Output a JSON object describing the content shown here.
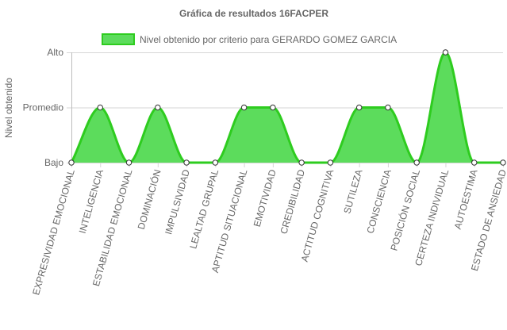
{
  "chart_data": {
    "type": "area",
    "title": "Gráfica de resultados 16FACPER",
    "ylabel": "Nivel obtenido",
    "xlabel": "",
    "y_tick_labels": [
      "Bajo",
      "Promedio",
      "Alto"
    ],
    "ylim": [
      0,
      2
    ],
    "grid": true,
    "legend": "top",
    "categories": [
      "EXPRESIVIDAD EMOCIONAL",
      "INTELIGENCIA",
      "ESTABILIDAD EMOCIONAL",
      "DOMINACIÓN",
      "IMPULSIVIDAD",
      "LEALTAD GRUPAL",
      "APTITUD SITUACIONAL",
      "EMOTIVIDAD",
      "CREDIBILIDAD",
      "ACTITUD COGNITIVA",
      "SUTILEZA",
      "CONSCIENCIA",
      "POSICIÓN SOCIAL",
      "CERTEZA INDIVIDUAL",
      "AUTOESTIMA",
      "ESTADO DE ANSIEDAD"
    ],
    "series": [
      {
        "name": "Nivel obtenido por criterio para GERARDO GOMEZ GARCIA",
        "values": [
          0,
          1,
          0,
          1,
          0,
          0,
          1,
          1,
          0,
          0,
          1,
          1,
          0,
          2,
          0,
          0
        ],
        "color": "#2ecc1f",
        "fill": "#5cdc5c"
      }
    ]
  }
}
